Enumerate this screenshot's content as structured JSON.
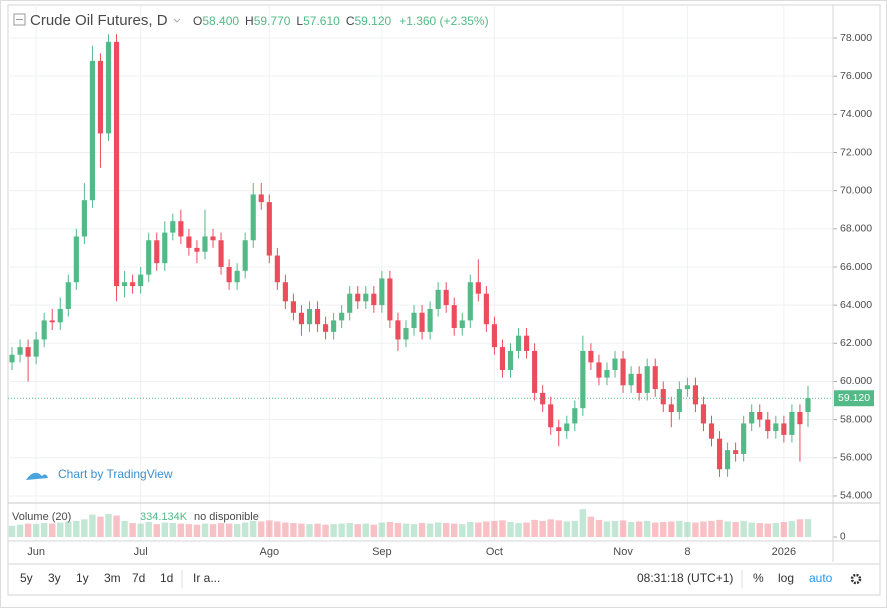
{
  "chart_data": {
    "type": "candlestick",
    "title": "Crude Oil Futures, D",
    "header": [
      {
        "key": "O",
        "text": "58.400"
      },
      {
        "key": "H",
        "text": "59.770"
      },
      {
        "key": "L",
        "text": "57.610"
      },
      {
        "key": "C",
        "text": "59.120"
      }
    ],
    "change": "+1.360 (+2.35%)",
    "categories": [
      null,
      null,
      null,
      "Jun",
      null,
      null,
      null,
      null,
      null,
      null,
      null,
      null,
      null,
      null,
      null,
      null,
      "Jul",
      null,
      null,
      null,
      null,
      null,
      null,
      null,
      null,
      null,
      null,
      null,
      null,
      null,
      null,
      null,
      "Ago",
      null,
      null,
      null,
      null,
      null,
      null,
      null,
      null,
      null,
      null,
      null,
      null,
      null,
      "Sep",
      null,
      null,
      null,
      null,
      null,
      null,
      null,
      null,
      null,
      null,
      null,
      null,
      null,
      "Oct",
      null,
      null,
      null,
      null,
      null,
      null,
      null,
      null,
      null,
      null,
      null,
      null,
      null,
      null,
      null,
      "Nov",
      null,
      null,
      null,
      null,
      null,
      null,
      null,
      "8",
      null,
      null,
      null,
      null,
      null,
      null,
      null,
      null,
      null,
      null,
      null,
      "2026",
      null,
      null,
      null
    ],
    "open": [
      61.0,
      61.4,
      61.8,
      61.3,
      62.2,
      63.2,
      63.1,
      63.8,
      65.2,
      67.6,
      69.5,
      76.8,
      73.0,
      77.8,
      65.0,
      65.2,
      65.0,
      65.6,
      67.4,
      66.2,
      67.8,
      68.4,
      67.6,
      67.0,
      66.8,
      67.6,
      67.4,
      66.0,
      65.2,
      65.8,
      67.4,
      69.8,
      69.4,
      66.6,
      65.2,
      64.2,
      63.6,
      63.0,
      63.8,
      63.0,
      62.6,
      63.2,
      63.6,
      64.6,
      64.2,
      64.6,
      64.0,
      65.4,
      63.2,
      62.2,
      62.8,
      63.6,
      62.6,
      63.8,
      64.8,
      64.0,
      62.8,
      63.2,
      65.2,
      64.6,
      63.0,
      61.8,
      60.6,
      61.6,
      62.4,
      61.6,
      59.4,
      58.8,
      57.6,
      57.4,
      57.8,
      58.6,
      61.6,
      61.0,
      60.2,
      60.6,
      61.2,
      59.8,
      60.4,
      59.4,
      60.8,
      59.6,
      58.8,
      58.4,
      59.6,
      59.8,
      58.8,
      57.8,
      57.0,
      55.4,
      56.4,
      56.2,
      57.8,
      58.4,
      58.0,
      57.4,
      57.8,
      57.2,
      58.4,
      58.4
    ],
    "high": [
      61.8,
      62.2,
      62.2,
      62.6,
      63.6,
      63.8,
      64.4,
      65.6,
      68.0,
      70.4,
      77.6,
      77.2,
      78.2,
      78.2,
      65.8,
      65.6,
      66.0,
      67.8,
      67.8,
      68.4,
      68.8,
      69.0,
      68.0,
      67.4,
      69.0,
      68.0,
      67.8,
      66.4,
      66.2,
      67.8,
      70.4,
      70.4,
      69.8,
      67.0,
      65.6,
      64.6,
      64.0,
      64.2,
      64.2,
      63.4,
      63.6,
      64.0,
      65.0,
      65.0,
      65.0,
      65.0,
      65.8,
      65.8,
      63.6,
      63.2,
      64.0,
      64.0,
      64.2,
      65.2,
      65.2,
      64.4,
      63.6,
      65.6,
      66.4,
      65.0,
      63.4,
      62.2,
      62.0,
      62.8,
      62.8,
      62.0,
      59.8,
      59.2,
      58.0,
      58.2,
      59.0,
      62.4,
      62.0,
      61.4,
      61.0,
      61.6,
      61.6,
      60.8,
      60.8,
      61.2,
      61.2,
      60.0,
      59.2,
      60.0,
      60.2,
      60.2,
      59.2,
      58.2,
      57.4,
      56.8,
      56.8,
      58.2,
      58.8,
      58.8,
      58.4,
      58.2,
      58.2,
      58.8,
      58.8,
      59.77
    ],
    "low": [
      60.6,
      61.0,
      60.0,
      60.9,
      61.8,
      62.7,
      62.7,
      63.4,
      64.8,
      67.2,
      69.1,
      71.2,
      72.6,
      64.2,
      64.4,
      64.6,
      64.6,
      65.2,
      65.8,
      65.8,
      67.4,
      67.2,
      66.6,
      66.2,
      66.4,
      67.0,
      65.6,
      64.8,
      64.8,
      65.4,
      67.0,
      69.0,
      66.2,
      64.8,
      63.8,
      63.2,
      62.4,
      62.6,
      62.6,
      62.2,
      62.2,
      62.8,
      63.2,
      63.8,
      63.8,
      63.6,
      63.6,
      62.8,
      61.6,
      61.8,
      62.4,
      62.2,
      62.2,
      63.4,
      63.6,
      62.4,
      62.4,
      62.8,
      64.2,
      62.6,
      61.4,
      60.2,
      60.2,
      61.2,
      61.2,
      59.0,
      58.4,
      57.2,
      56.6,
      57.0,
      57.4,
      58.2,
      60.6,
      59.8,
      59.8,
      60.2,
      59.4,
      59.4,
      59.0,
      59.0,
      59.2,
      58.4,
      57.6,
      58.0,
      59.2,
      58.4,
      57.4,
      56.6,
      55.0,
      55.0,
      55.8,
      55.8,
      57.4,
      57.6,
      57.0,
      57.0,
      56.8,
      56.8,
      55.8,
      57.61
    ],
    "close": [
      61.4,
      61.8,
      61.3,
      62.2,
      63.2,
      63.1,
      63.8,
      65.2,
      67.6,
      69.5,
      76.8,
      73.0,
      77.8,
      65.0,
      65.2,
      65.0,
      65.6,
      67.4,
      66.2,
      67.8,
      68.4,
      67.6,
      67.0,
      66.8,
      67.6,
      67.4,
      66.0,
      65.2,
      65.8,
      67.4,
      69.8,
      69.4,
      66.6,
      65.2,
      64.2,
      63.6,
      63.0,
      63.8,
      63.0,
      62.6,
      63.2,
      63.6,
      64.6,
      64.2,
      64.6,
      64.0,
      65.4,
      63.2,
      62.2,
      62.8,
      63.6,
      62.6,
      63.8,
      64.8,
      64.0,
      62.8,
      63.2,
      65.2,
      64.6,
      63.0,
      61.8,
      60.6,
      61.6,
      62.4,
      61.6,
      59.4,
      58.8,
      57.6,
      57.4,
      57.8,
      58.6,
      61.6,
      61.0,
      60.2,
      60.6,
      61.2,
      59.8,
      60.4,
      59.4,
      60.8,
      59.6,
      58.8,
      58.4,
      59.6,
      59.8,
      58.8,
      57.8,
      57.0,
      55.4,
      56.4,
      56.2,
      57.8,
      58.4,
      58.0,
      57.4,
      57.8,
      57.2,
      58.4,
      57.76,
      59.12
    ],
    "volume": [
      210000,
      230000,
      250000,
      240000,
      260000,
      250000,
      270000,
      290000,
      300000,
      330000,
      420000,
      380000,
      430000,
      400000,
      300000,
      260000,
      250000,
      280000,
      240000,
      270000,
      260000,
      250000,
      240000,
      230000,
      250000,
      240000,
      260000,
      250000,
      240000,
      270000,
      300000,
      290000,
      310000,
      290000,
      270000,
      260000,
      250000,
      240000,
      250000,
      230000,
      240000,
      250000,
      260000,
      240000,
      250000,
      230000,
      270000,
      280000,
      260000,
      250000,
      240000,
      260000,
      250000,
      270000,
      260000,
      250000,
      240000,
      280000,
      270000,
      290000,
      300000,
      310000,
      280000,
      260000,
      270000,
      320000,
      300000,
      330000,
      310000,
      290000,
      300000,
      520000,
      380000,
      320000,
      290000,
      300000,
      310000,
      280000,
      290000,
      300000,
      270000,
      280000,
      290000,
      300000,
      280000,
      270000,
      290000,
      300000,
      320000,
      290000,
      280000,
      300000,
      270000,
      260000,
      250000,
      260000,
      280000,
      300000,
      330000,
      334134
    ],
    "up_color": "#53b987",
    "down_color": "#eb4d5c",
    "ylim": [
      53.63,
      79.73
    ],
    "yticks": [
      {
        "value": 54,
        "label": "54.000"
      },
      {
        "value": 56,
        "label": "56.000"
      },
      {
        "value": 58,
        "label": "58.000"
      },
      {
        "value": 60,
        "label": "60.000"
      },
      {
        "value": 62,
        "label": "62.000"
      },
      {
        "value": 64,
        "label": "64.000"
      },
      {
        "value": 66,
        "label": "66.000"
      },
      {
        "value": 68,
        "label": "68.000"
      },
      {
        "value": 70,
        "label": "70.000"
      },
      {
        "value": 72,
        "label": "72.000"
      },
      {
        "value": 74,
        "label": "74.000"
      },
      {
        "value": 76,
        "label": "76.000"
      },
      {
        "value": 78,
        "label": "78.000"
      }
    ],
    "last_price": {
      "value": 59.12,
      "label": "59.120"
    },
    "volume_ylim": [
      0,
      560000
    ],
    "volume_yticks": [
      0
    ],
    "volume_legend": {
      "name": "Volume (20)",
      "value": "334.134K",
      "note": "no disponible"
    },
    "grid": true,
    "watermark": "Chart by TradingView"
  },
  "toolbar": {
    "ranges": [
      "5y",
      "3y",
      "1y",
      "3m",
      "7d",
      "1d"
    ],
    "goto": "Ir a...",
    "time": "08:31:18 (UTC+1)",
    "percent": "%",
    "log": "log",
    "auto": "auto"
  }
}
